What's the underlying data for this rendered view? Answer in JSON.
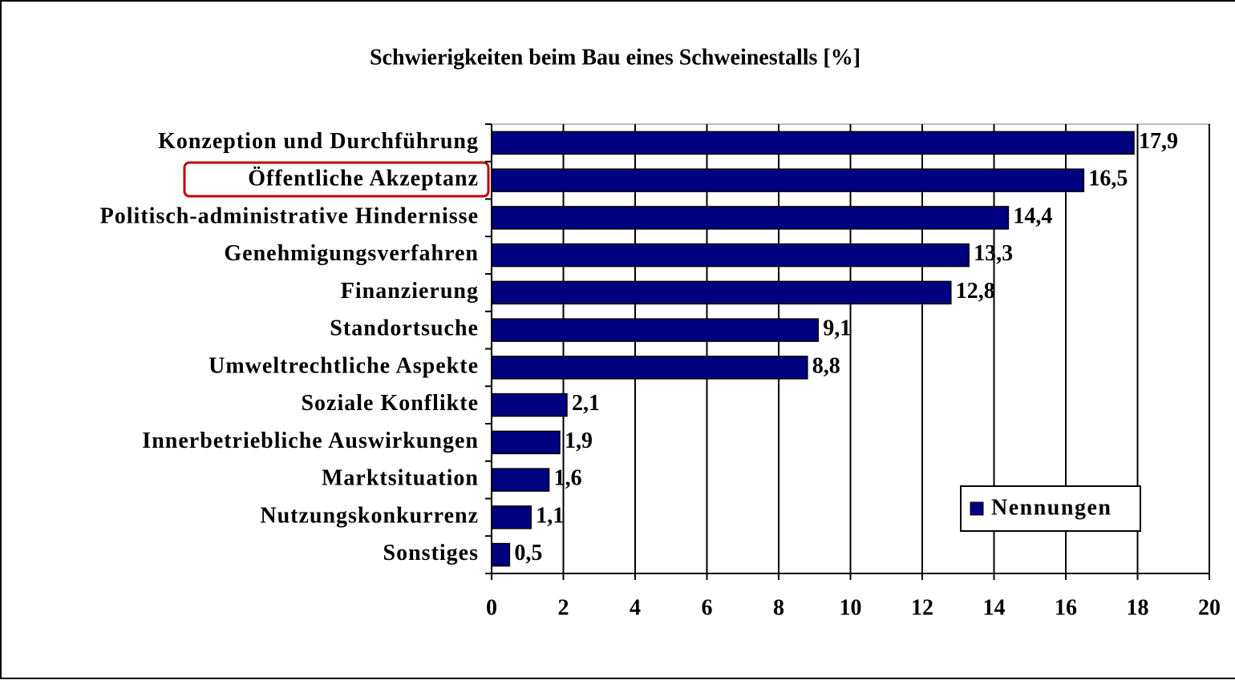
{
  "chart_data": {
    "type": "barh",
    "title": "Schwierigkeiten beim Bau eines Schweinestalls [%]",
    "categories": [
      "Konzeption und Durchführung",
      "Öffentliche Akzeptanz",
      "Politisch-administrative Hindernisse",
      "Genehmigungsverfahren",
      "Finanzierung",
      "Standortsuche",
      "Umweltrechtliche Aspekte",
      "Soziale Konflikte",
      "Innerbetriebliche Auswirkungen",
      "Marktsituation",
      "Nutzungskonkurrenz",
      "Sonstiges"
    ],
    "series": [
      {
        "name": "Nennungen",
        "color": "#000080",
        "values": [
          17.9,
          16.5,
          14.4,
          13.3,
          12.8,
          9.1,
          8.8,
          2.1,
          1.9,
          1.6,
          1.1,
          0.5
        ],
        "value_labels": [
          "17,9",
          "16,5",
          "14,4",
          "13,3",
          "12,8",
          "9,1",
          "8,8",
          "2,1",
          "1,9",
          "1,6",
          "1,1",
          "0,5"
        ]
      }
    ],
    "xlim": [
      0,
      20
    ],
    "xticks": [
      0,
      2,
      4,
      6,
      8,
      10,
      12,
      14,
      16,
      18,
      20
    ],
    "grid": true,
    "legend": "lower right"
  }
}
